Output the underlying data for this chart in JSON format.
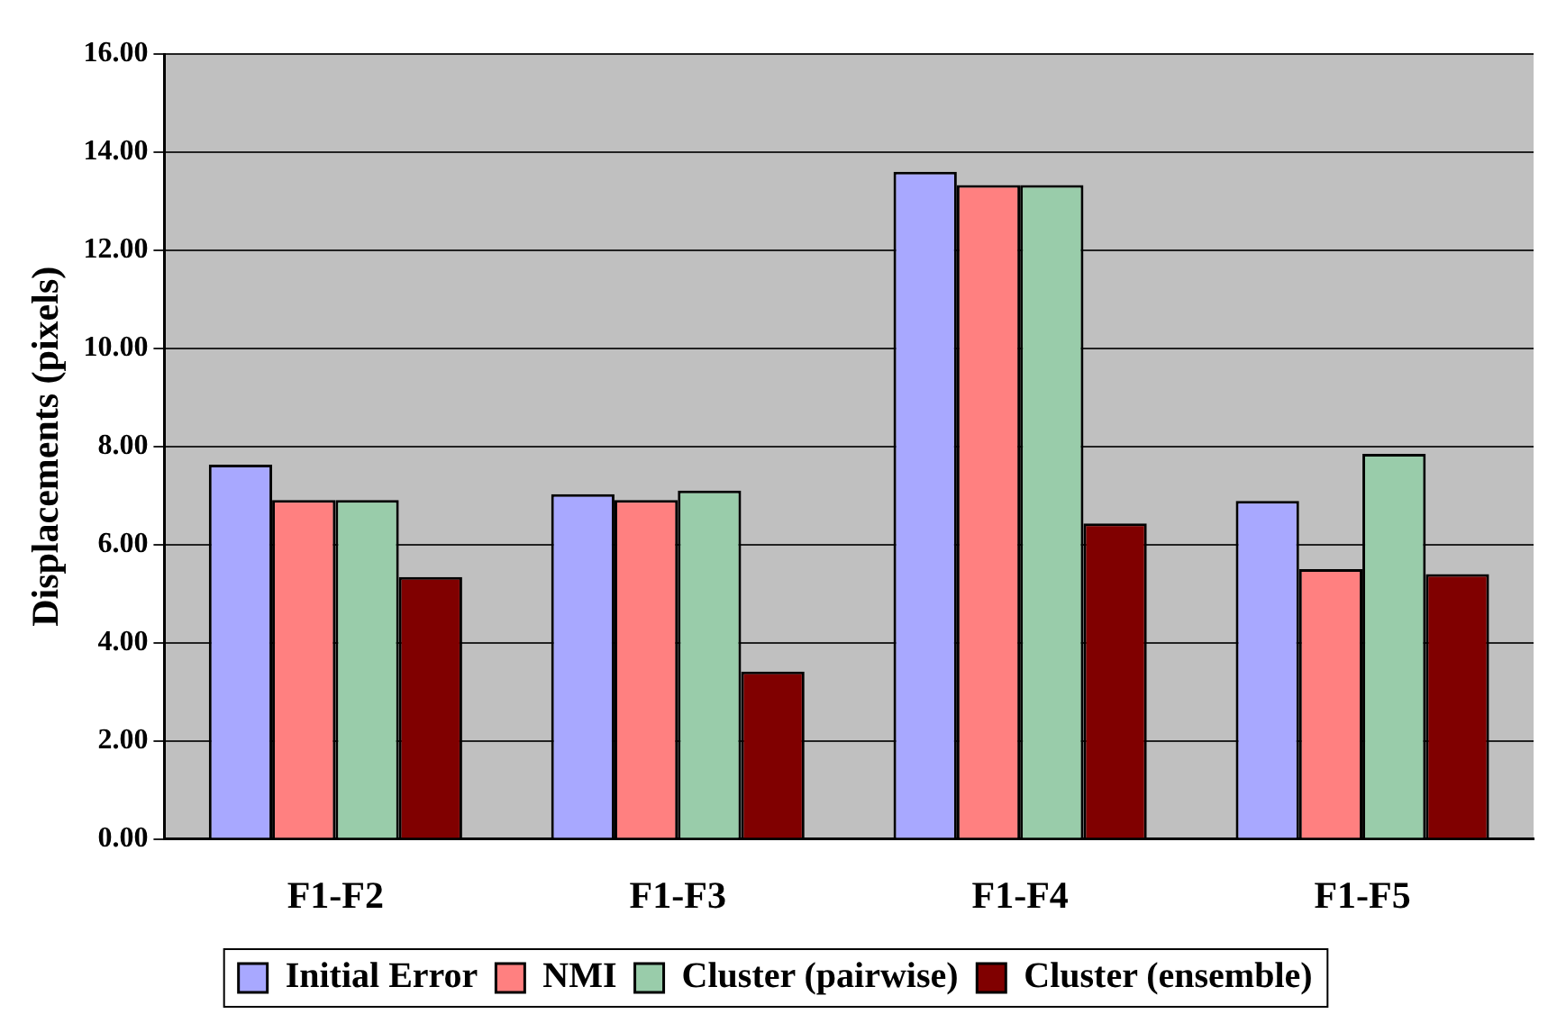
{
  "chart_data": {
    "type": "bar",
    "ylabel": "Displacements (pixels)",
    "categories": [
      "F1-F2",
      "F1-F3",
      "F1-F4",
      "F1-F5"
    ],
    "series": [
      {
        "name": "Initial Error",
        "color": "#a8a8ff",
        "values": [
          7.63,
          7.03,
          13.6,
          6.89
        ]
      },
      {
        "name": "NMI",
        "color": "#ff8080",
        "values": [
          6.91,
          6.91,
          13.33,
          5.5
        ]
      },
      {
        "name": "Cluster (pairwise)",
        "color": "#99ccaa",
        "values": [
          6.91,
          7.1,
          13.33,
          7.85
        ]
      },
      {
        "name": "Cluster (ensemble)",
        "color": "#800000",
        "values": [
          5.34,
          3.41,
          6.43,
          5.4
        ]
      }
    ],
    "ylim": [
      0,
      16
    ],
    "yticks": [
      {
        "value": 0,
        "label": "0.00"
      },
      {
        "value": 2,
        "label": "2.00"
      },
      {
        "value": 4,
        "label": "4.00"
      },
      {
        "value": 6,
        "label": "6.00"
      },
      {
        "value": 8,
        "label": "8.00"
      },
      {
        "value": 10,
        "label": "10.00"
      },
      {
        "value": 12,
        "label": "12.00"
      },
      {
        "value": 14,
        "label": "14.00"
      },
      {
        "value": 16,
        "label": "16.00"
      }
    ],
    "grid": "y",
    "legend": "bottom"
  }
}
